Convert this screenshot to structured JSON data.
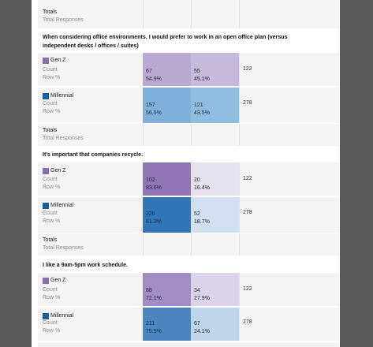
{
  "labels": {
    "totals": "Totals",
    "total_responses": "Total Responses",
    "count": "Count",
    "row_pct": "Row %"
  },
  "colors": {
    "gen_z": "#8a6fb0",
    "millennial": "#1f5c99"
  },
  "questions": [
    {
      "title": "When considering office environments, I would prefer to work in an open office plan (versus independent desks / offices / suites)",
      "rows": [
        {
          "group": "Gen Z",
          "count_a": "67",
          "pct_a": "54.9%",
          "count_b": "55",
          "pct_b": "45.1%",
          "total": "122"
        },
        {
          "group": "Millennial",
          "count_a": "157",
          "pct_a": "56.5%",
          "count_b": "121",
          "pct_b": "43.5%",
          "total": "278"
        }
      ]
    },
    {
      "title": "It's important that companies recycle.",
      "rows": [
        {
          "group": "Gen Z",
          "count_a": "102",
          "pct_a": "83.6%",
          "count_b": "20",
          "pct_b": "16.4%",
          "total": "122"
        },
        {
          "group": "Millennial",
          "count_a": "226",
          "pct_a": "81.3%",
          "count_b": "52",
          "pct_b": "18.7%",
          "total": "278"
        }
      ]
    },
    {
      "title": "I like a 9am-5pm work schedule.",
      "rows": [
        {
          "group": "Gen Z",
          "count_a": "88",
          "pct_a": "72.1%",
          "count_b": "34",
          "pct_b": "27.9%",
          "total": "122"
        },
        {
          "group": "Millennial",
          "count_a": "211",
          "pct_a": "75.9%",
          "count_b": "67",
          "pct_b": "24.1%",
          "total": "278"
        }
      ]
    }
  ]
}
